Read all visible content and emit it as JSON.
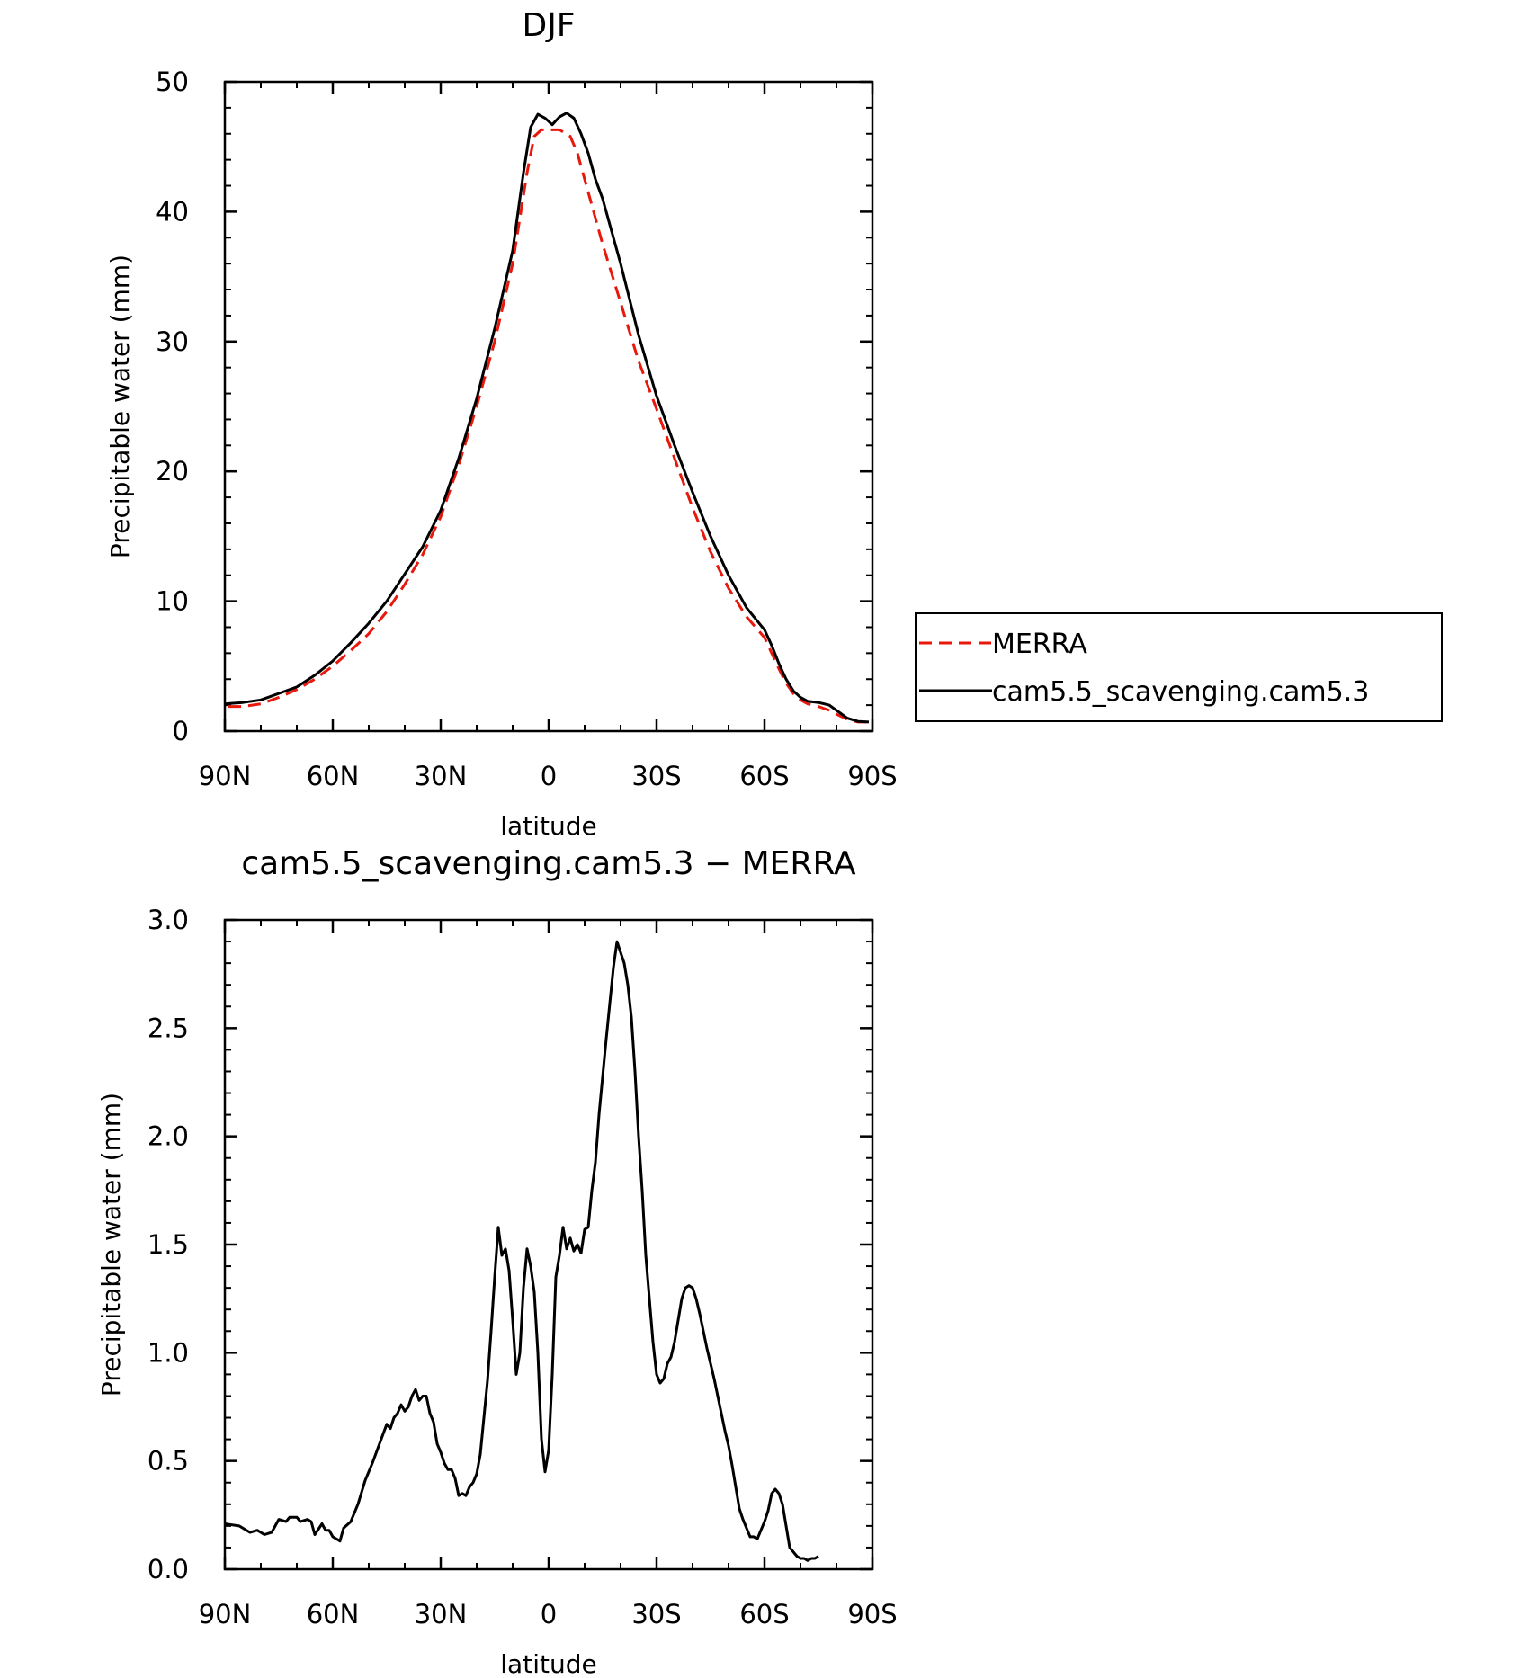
{
  "chart_data": [
    {
      "type": "line",
      "title": "DJF",
      "xlabel": "latitude",
      "ylabel": "Precipitable water (mm)",
      "xlim": [
        -90,
        90
      ],
      "ylim": [
        0,
        50
      ],
      "x_ticks": [
        {
          "value": -90,
          "label": "90N"
        },
        {
          "value": -60,
          "label": "60N"
        },
        {
          "value": -30,
          "label": "30N"
        },
        {
          "value": 0,
          "label": "0"
        },
        {
          "value": 30,
          "label": "30S"
        },
        {
          "value": 60,
          "label": "60S"
        },
        {
          "value": 90,
          "label": "90S"
        }
      ],
      "y_ticks": [
        {
          "value": 0,
          "label": "0"
        },
        {
          "value": 10,
          "label": "10"
        },
        {
          "value": 20,
          "label": "20"
        },
        {
          "value": 30,
          "label": "30"
        },
        {
          "value": 40,
          "label": "40"
        },
        {
          "value": 50,
          "label": "50"
        }
      ],
      "grid": false,
      "legend": "outside-right",
      "series": [
        {
          "name": "MERRA",
          "color": "#e8180c",
          "dash": "dashed",
          "points": [
            [
              -89,
              1.9
            ],
            [
              -85,
              1.9
            ],
            [
              -80,
              2.1
            ],
            [
              -75,
              2.6
            ],
            [
              -70,
              3.2
            ],
            [
              -65,
              4.0
            ],
            [
              -60,
              5.0
            ],
            [
              -55,
              6.2
            ],
            [
              -50,
              7.5
            ],
            [
              -45,
              9.2
            ],
            [
              -40,
              11.3
            ],
            [
              -35,
              13.6
            ],
            [
              -30,
              16.5
            ],
            [
              -25,
              20.5
            ],
            [
              -20,
              25
            ],
            [
              -15,
              30
            ],
            [
              -10,
              36
            ],
            [
              -6,
              43
            ],
            [
              -4,
              45.8
            ],
            [
              -2,
              46.3
            ],
            [
              0,
              46.3
            ],
            [
              3,
              46.3
            ],
            [
              6,
              45.8
            ],
            [
              8,
              44.5
            ],
            [
              10,
              42.5
            ],
            [
              12,
              40.5
            ],
            [
              15,
              37.5
            ],
            [
              20,
              33
            ],
            [
              25,
              28.5
            ],
            [
              30,
              24.8
            ],
            [
              35,
              21
            ],
            [
              40,
              17.2
            ],
            [
              45,
              13.8
            ],
            [
              50,
              11
            ],
            [
              55,
              8.8
            ],
            [
              60,
              7.2
            ],
            [
              62,
              6.0
            ],
            [
              64,
              4.8
            ],
            [
              66,
              3.7
            ],
            [
              68,
              2.9
            ],
            [
              70,
              2.4
            ],
            [
              72,
              2.1
            ],
            [
              75,
              1.9
            ],
            [
              78,
              1.6
            ],
            [
              80,
              1.3
            ],
            [
              83,
              0.9
            ],
            [
              86,
              0.7
            ],
            [
              89,
              0.7
            ]
          ]
        },
        {
          "name": "cam5.5_scavenging.cam5.3",
          "color": "#000000",
          "dash": "solid",
          "points": [
            [
              -90,
              2.1
            ],
            [
              -85,
              2.2
            ],
            [
              -80,
              2.4
            ],
            [
              -75,
              2.9
            ],
            [
              -70,
              3.4
            ],
            [
              -65,
              4.3
            ],
            [
              -60,
              5.4
            ],
            [
              -55,
              6.8
            ],
            [
              -50,
              8.3
            ],
            [
              -45,
              10.0
            ],
            [
              -40,
              12.1
            ],
            [
              -35,
              14.2
            ],
            [
              -30,
              17.0
            ],
            [
              -25,
              21
            ],
            [
              -20,
              25.6
            ],
            [
              -15,
              31
            ],
            [
              -10,
              37
            ],
            [
              -7,
              43
            ],
            [
              -5,
              46.5
            ],
            [
              -3,
              47.5
            ],
            [
              -1,
              47.2
            ],
            [
              1,
              46.7
            ],
            [
              3,
              47.3
            ],
            [
              5,
              47.6
            ],
            [
              7,
              47.2
            ],
            [
              9,
              46
            ],
            [
              11,
              44.5
            ],
            [
              13,
              42.5
            ],
            [
              15,
              41
            ],
            [
              20,
              36
            ],
            [
              25,
              30.5
            ],
            [
              30,
              25.8
            ],
            [
              35,
              22
            ],
            [
              40,
              18.4
            ],
            [
              45,
              15
            ],
            [
              50,
              12
            ],
            [
              55,
              9.5
            ],
            [
              60,
              7.8
            ],
            [
              62,
              6.6
            ],
            [
              64,
              5.2
            ],
            [
              66,
              4.0
            ],
            [
              68,
              3.1
            ],
            [
              70,
              2.6
            ],
            [
              72,
              2.3
            ],
            [
              75,
              2.2
            ],
            [
              78,
              2.0
            ],
            [
              80,
              1.6
            ],
            [
              83,
              1.0
            ],
            [
              86,
              0.75
            ],
            [
              89,
              0.7
            ]
          ]
        }
      ]
    },
    {
      "type": "line",
      "title": "cam5.5_scavenging.cam5.3 − MERRA",
      "xlabel": "latitude",
      "ylabel": "Precipitable water (mm)",
      "xlim": [
        -90,
        90
      ],
      "ylim": [
        0,
        3
      ],
      "x_ticks": [
        {
          "value": -90,
          "label": "90N"
        },
        {
          "value": -60,
          "label": "60N"
        },
        {
          "value": -30,
          "label": "30N"
        },
        {
          "value": 0,
          "label": "0"
        },
        {
          "value": 30,
          "label": "30S"
        },
        {
          "value": 60,
          "label": "60S"
        },
        {
          "value": 90,
          "label": "90S"
        }
      ],
      "y_ticks": [
        {
          "value": 0,
          "label": "0.0"
        },
        {
          "value": 0.5,
          "label": "0.5"
        },
        {
          "value": 1.0,
          "label": "1.0"
        },
        {
          "value": 1.5,
          "label": "1.5"
        },
        {
          "value": 2.0,
          "label": "2.0"
        },
        {
          "value": 2.5,
          "label": "2.5"
        },
        {
          "value": 3.0,
          "label": "3.0"
        }
      ],
      "grid": false,
      "series": [
        {
          "name": "",
          "color": "#000000",
          "dash": "solid",
          "points": [
            [
              -90,
              0.21
            ],
            [
              -86,
              0.2
            ],
            [
              -83,
              0.17
            ],
            [
              -81,
              0.18
            ],
            [
              -79,
              0.16
            ],
            [
              -77,
              0.17
            ],
            [
              -75,
              0.23
            ],
            [
              -73,
              0.22
            ],
            [
              -72,
              0.24
            ],
            [
              -70,
              0.24
            ],
            [
              -69,
              0.22
            ],
            [
              -67,
              0.23
            ],
            [
              -66,
              0.22
            ],
            [
              -65,
              0.16
            ],
            [
              -63,
              0.21
            ],
            [
              -62,
              0.18
            ],
            [
              -61,
              0.18
            ],
            [
              -60,
              0.15
            ],
            [
              -58,
              0.13
            ],
            [
              -57,
              0.19
            ],
            [
              -55,
              0.22
            ],
            [
              -53,
              0.3
            ],
            [
              -51,
              0.41
            ],
            [
              -49,
              0.49
            ],
            [
              -47,
              0.58
            ],
            [
              -45,
              0.67
            ],
            [
              -44,
              0.65
            ],
            [
              -43,
              0.7
            ],
            [
              -42,
              0.72
            ],
            [
              -41,
              0.76
            ],
            [
              -40,
              0.73
            ],
            [
              -39,
              0.75
            ],
            [
              -38,
              0.8
            ],
            [
              -37,
              0.83
            ],
            [
              -36,
              0.78
            ],
            [
              -35,
              0.8
            ],
            [
              -34,
              0.8
            ],
            [
              -33,
              0.72
            ],
            [
              -32,
              0.68
            ],
            [
              -31,
              0.58
            ],
            [
              -30,
              0.54
            ],
            [
              -29,
              0.49
            ],
            [
              -28,
              0.46
            ],
            [
              -27,
              0.46
            ],
            [
              -26,
              0.42
            ],
            [
              -25,
              0.34
            ],
            [
              -24,
              0.35
            ],
            [
              -23,
              0.34
            ],
            [
              -22,
              0.38
            ],
            [
              -21,
              0.4
            ],
            [
              -20,
              0.44
            ],
            [
              -19,
              0.53
            ],
            [
              -18,
              0.7
            ],
            [
              -17,
              0.87
            ],
            [
              -16,
              1.1
            ],
            [
              -15,
              1.35
            ],
            [
              -14,
              1.58
            ],
            [
              -13,
              1.45
            ],
            [
              -12,
              1.48
            ],
            [
              -11,
              1.38
            ],
            [
              -10,
              1.15
            ],
            [
              -9,
              0.9
            ],
            [
              -8,
              1.0
            ],
            [
              -7,
              1.3
            ],
            [
              -6,
              1.48
            ],
            [
              -5,
              1.4
            ],
            [
              -4,
              1.28
            ],
            [
              -3,
              1.0
            ],
            [
              -2,
              0.6
            ],
            [
              -1,
              0.45
            ],
            [
              0,
              0.55
            ],
            [
              1,
              0.9
            ],
            [
              2,
              1.35
            ],
            [
              3,
              1.45
            ],
            [
              4,
              1.58
            ],
            [
              5,
              1.48
            ],
            [
              6,
              1.53
            ],
            [
              7,
              1.47
            ],
            [
              8,
              1.5
            ],
            [
              9,
              1.46
            ],
            [
              10,
              1.57
            ],
            [
              11,
              1.58
            ],
            [
              12,
              1.75
            ],
            [
              13,
              1.88
            ],
            [
              14,
              2.1
            ],
            [
              16,
              2.45
            ],
            [
              18,
              2.78
            ],
            [
              19,
              2.9
            ],
            [
              20,
              2.85
            ],
            [
              21,
              2.8
            ],
            [
              22,
              2.7
            ],
            [
              23,
              2.55
            ],
            [
              24,
              2.3
            ],
            [
              25,
              2.0
            ],
            [
              26,
              1.75
            ],
            [
              27,
              1.45
            ],
            [
              28,
              1.25
            ],
            [
              29,
              1.05
            ],
            [
              30,
              0.9
            ],
            [
              31,
              0.86
            ],
            [
              32,
              0.88
            ],
            [
              33,
              0.95
            ],
            [
              34,
              0.98
            ],
            [
              35,
              1.05
            ],
            [
              36,
              1.15
            ],
            [
              37,
              1.25
            ],
            [
              38,
              1.3
            ],
            [
              39,
              1.31
            ],
            [
              40,
              1.3
            ],
            [
              41,
              1.25
            ],
            [
              42,
              1.18
            ],
            [
              43,
              1.1
            ],
            [
              44,
              1.02
            ],
            [
              45,
              0.95
            ],
            [
              46,
              0.88
            ],
            [
              47,
              0.8
            ],
            [
              48,
              0.72
            ],
            [
              49,
              0.64
            ],
            [
              50,
              0.57
            ],
            [
              51,
              0.48
            ],
            [
              52,
              0.38
            ],
            [
              53,
              0.28
            ],
            [
              54,
              0.23
            ],
            [
              55,
              0.19
            ],
            [
              56,
              0.15
            ],
            [
              57,
              0.15
            ],
            [
              58,
              0.14
            ],
            [
              59,
              0.18
            ],
            [
              60,
              0.22
            ],
            [
              61,
              0.27
            ],
            [
              62,
              0.35
            ],
            [
              63,
              0.37
            ],
            [
              64,
              0.35
            ],
            [
              65,
              0.3
            ],
            [
              66,
              0.2
            ],
            [
              67,
              0.1
            ],
            [
              68,
              0.08
            ],
            [
              69,
              0.06
            ],
            [
              70,
              0.05
            ],
            [
              71,
              0.05
            ],
            [
              72,
              0.04
            ],
            [
              73,
              0.05
            ],
            [
              74,
              0.05
            ],
            [
              75,
              0.06
            ]
          ]
        }
      ]
    }
  ]
}
